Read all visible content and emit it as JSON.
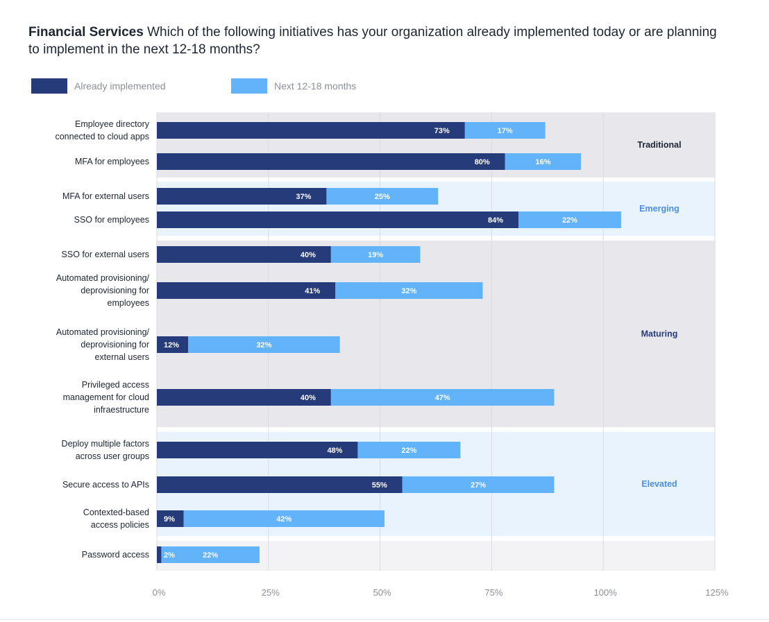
{
  "header": {
    "title_bold": "Financial Services",
    "title_rest": " Which of the following initiatives has your organization already implemented today or are planning to implement in the next 12-18 months?"
  },
  "colors": {
    "implemented": "#253b7a",
    "planned": "#63b3fb",
    "band_gray": "#e8e8ec",
    "band_blue": "#e9f3fd",
    "band_light": "#f3f3f5"
  },
  "chart_data": {
    "type": "bar",
    "orientation": "horizontal",
    "stacked": true,
    "categories": [
      "Employee directory connected to cloud apps",
      "MFA for employees",
      "MFA for external users",
      "SSO for employees",
      "SSO for external users",
      "Automated provisioning/ deprovisioning for employees",
      "Automated provisioning/ deprovisioning for external users",
      "Privileged access management for cloud infraestructure",
      "Deploy multiple factors across user groups",
      "Secure access to APIs",
      "Contexted-based access policies",
      "Password access"
    ],
    "category_lines": [
      [
        "Employee directory",
        "connected to cloud apps"
      ],
      [
        "MFA for employees"
      ],
      [
        "MFA for external users"
      ],
      [
        "SSO for employees"
      ],
      [
        "SSO for external users"
      ],
      [
        "Automated provisioning/",
        "deprovisioning for",
        "employees"
      ],
      [
        "Automated provisioning/",
        "deprovisioning for",
        "external users"
      ],
      [
        "Privileged access",
        "management for cloud",
        "infraestructure"
      ],
      [
        "Deploy multiple factors",
        "across user groups"
      ],
      [
        "Secure access to APIs"
      ],
      [
        "Contexted-based",
        "access policies"
      ],
      [
        "Password access"
      ]
    ],
    "series": [
      {
        "name": "Already implemented",
        "values": [
          73,
          80,
          37,
          84,
          40,
          41,
          12,
          40,
          48,
          55,
          9,
          2
        ]
      },
      {
        "name": "Next 12-18 months",
        "values": [
          17,
          16,
          25,
          22,
          19,
          32,
          32,
          47,
          22,
          27,
          42,
          22
        ]
      }
    ],
    "bar_lengths": {
      "Already implemented": [
        69,
        78,
        38,
        81,
        39,
        40,
        7,
        39,
        45,
        55,
        6,
        1
      ],
      "Next 12-18 months": [
        18,
        17,
        25,
        23,
        20,
        33,
        34,
        50,
        23,
        34,
        45,
        22
      ]
    },
    "groups": [
      {
        "name": "Traditional",
        "from": 0,
        "to": 1
      },
      {
        "name": "Emerging",
        "from": 2,
        "to": 3
      },
      {
        "name": "Maturing",
        "from": 4,
        "to": 7
      },
      {
        "name": "Elevated",
        "from": 8,
        "to": 10
      },
      {
        "name": "",
        "from": 11,
        "to": 11
      }
    ],
    "xticks": [
      "0%",
      "25%",
      "50%",
      "75%",
      "100%",
      "125%"
    ],
    "xlim": [
      0,
      125
    ],
    "legend": [
      "Already implemented",
      "Next 12-18 months"
    ],
    "legend_position": "top-left"
  }
}
